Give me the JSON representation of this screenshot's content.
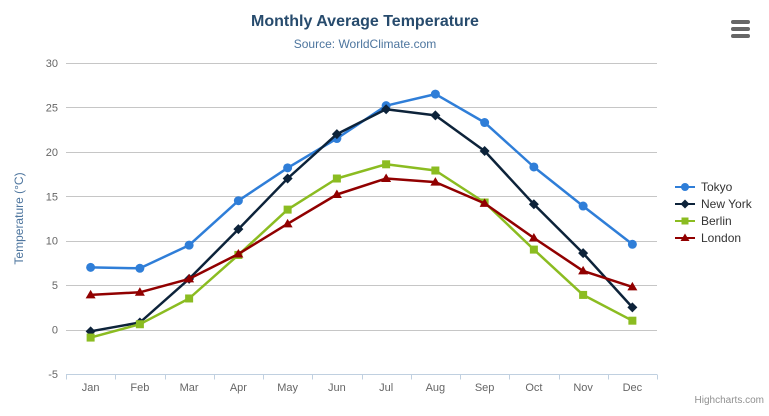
{
  "header": {
    "title": "Monthly Average Temperature",
    "subtitle": "Source: WorldClimate.com"
  },
  "credits": "Highcharts.com",
  "colors": {
    "title": "#274b6d",
    "subtitle": "#4d759e",
    "axis_label": "#666666",
    "axis_title": "#4d759e",
    "gridline": "#c6c6c6",
    "axis_line": "#c0d0e0",
    "legend_text": "#333333",
    "credits_text": "#909090",
    "menu_icon": "#666666",
    "background": "#ffffff"
  },
  "chart_data": {
    "type": "line",
    "title": "Monthly Average Temperature",
    "subtitle": "Source: WorldClimate.com",
    "categories": [
      "Jan",
      "Feb",
      "Mar",
      "Apr",
      "May",
      "Jun",
      "Jul",
      "Aug",
      "Sep",
      "Oct",
      "Nov",
      "Dec"
    ],
    "series": [
      {
        "name": "Tokyo",
        "color": "#2f7ed8",
        "marker": "circle",
        "values": [
          7.0,
          6.9,
          9.5,
          14.5,
          18.2,
          21.5,
          25.2,
          26.5,
          23.3,
          18.3,
          13.9,
          9.6
        ]
      },
      {
        "name": "New York",
        "color": "#0d233a",
        "marker": "diamond",
        "values": [
          -0.2,
          0.8,
          5.7,
          11.3,
          17.0,
          22.0,
          24.8,
          24.1,
          20.1,
          14.1,
          8.6,
          2.5
        ]
      },
      {
        "name": "Berlin",
        "color": "#8bbc21",
        "marker": "square",
        "values": [
          -0.9,
          0.6,
          3.5,
          8.4,
          13.5,
          17.0,
          18.6,
          17.9,
          14.3,
          9.0,
          3.9,
          1.0
        ]
      },
      {
        "name": "London",
        "color": "#910000",
        "marker": "triangle",
        "values": [
          3.9,
          4.2,
          5.7,
          8.5,
          11.9,
          15.2,
          17.0,
          16.6,
          14.2,
          10.3,
          6.6,
          4.8
        ]
      }
    ],
    "xlabel": "",
    "ylabel": "Temperature (°C)",
    "ylim": [
      -5,
      30
    ],
    "yticks": [
      -5,
      0,
      5,
      10,
      15,
      20,
      25,
      30
    ],
    "grid": true,
    "legend_position": "right"
  }
}
